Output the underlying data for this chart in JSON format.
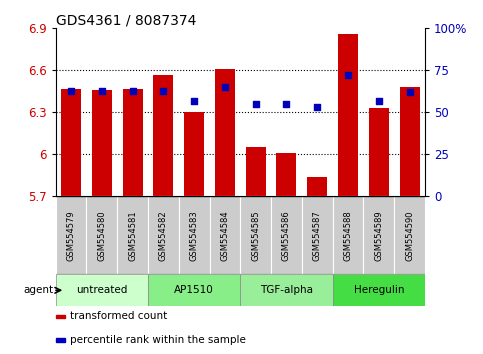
{
  "title": "GDS4361 / 8087374",
  "samples": [
    "GSM554579",
    "GSM554580",
    "GSM554581",
    "GSM554582",
    "GSM554583",
    "GSM554584",
    "GSM554585",
    "GSM554586",
    "GSM554587",
    "GSM554588",
    "GSM554589",
    "GSM554590"
  ],
  "bar_values": [
    6.47,
    6.46,
    6.47,
    6.57,
    6.3,
    6.61,
    6.05,
    6.01,
    5.84,
    6.86,
    6.33,
    6.48
  ],
  "percentile_values": [
    63,
    63,
    63,
    63,
    57,
    65,
    55,
    55,
    53,
    72,
    57,
    62
  ],
  "ylim_left": [
    5.7,
    6.9
  ],
  "ylim_right": [
    0,
    100
  ],
  "yticks_left": [
    5.7,
    6.0,
    6.3,
    6.6,
    6.9
  ],
  "ytick_labels_left": [
    "5.7",
    "6",
    "6.3",
    "6.6",
    "6.9"
  ],
  "yticks_right": [
    0,
    25,
    50,
    75,
    100
  ],
  "ytick_labels_right": [
    "0",
    "25",
    "50",
    "75",
    "100%"
  ],
  "grid_values": [
    6.0,
    6.3,
    6.6
  ],
  "bar_color": "#CC0000",
  "dot_color": "#0000BB",
  "bar_bottom": 5.7,
  "agents": [
    {
      "label": "untreated",
      "start": 0,
      "end": 3,
      "color": "#CCFFCC"
    },
    {
      "label": "AP1510",
      "start": 3,
      "end": 6,
      "color": "#88EE88"
    },
    {
      "label": "TGF-alpha",
      "start": 6,
      "end": 9,
      "color": "#99EE99"
    },
    {
      "label": "Heregulin",
      "start": 9,
      "end": 12,
      "color": "#44DD44"
    }
  ],
  "left_color": "#CC0000",
  "right_color": "#0000BB",
  "legend_items": [
    {
      "label": "transformed count",
      "color": "#CC0000"
    },
    {
      "label": "percentile rank within the sample",
      "color": "#0000BB"
    }
  ],
  "agent_label": "agent"
}
